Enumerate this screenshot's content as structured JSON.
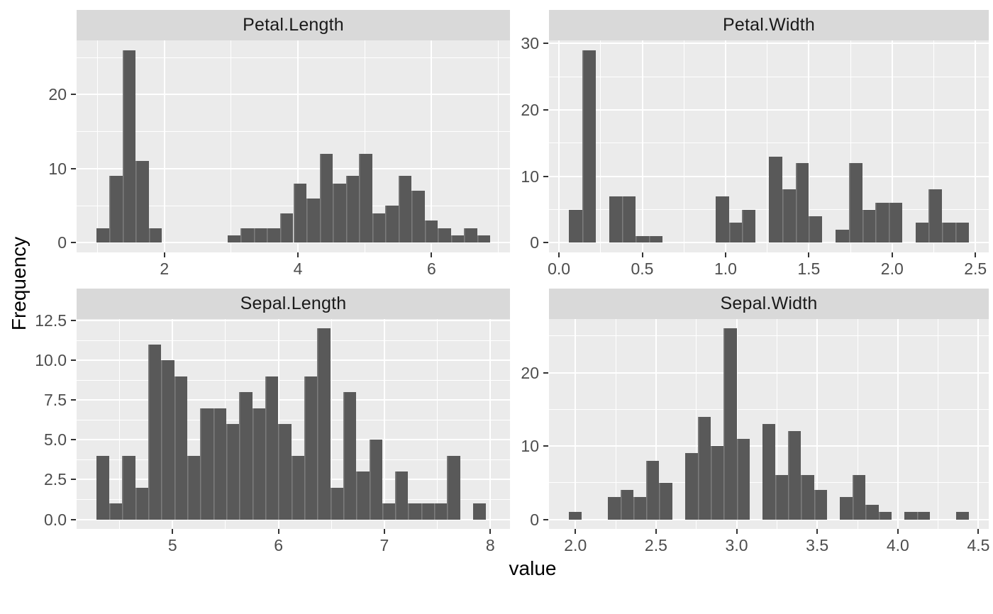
{
  "figure": {
    "xlabel": "value",
    "ylabel": "Frequency"
  },
  "colors": {
    "page_bg": "#FFFFFF",
    "panel_bg": "#EBEBEB",
    "strip_bg": "#D9D9D9",
    "strip_text": "#1A1A1A",
    "bar_fill": "#595959",
    "bar_seam": "rgba(255,255,255,0.22)",
    "gridline": "#FFFFFF",
    "axis_text": "#4D4D4D",
    "tick_mark": "#333333",
    "axis_title": "#000000"
  },
  "chart_data": [
    {
      "type": "bar",
      "subtype": "histogram",
      "title": "Petal.Length",
      "bin_start": 0.98,
      "bin_width": 0.196667,
      "counts": [
        2,
        9,
        26,
        11,
        2,
        0,
        0,
        0,
        0,
        0,
        1,
        2,
        2,
        2,
        4,
        8,
        6,
        12,
        8,
        9,
        12,
        4,
        5,
        9,
        7,
        3,
        2,
        1,
        2,
        1
      ],
      "xlim": [
        0.685,
        7.175
      ],
      "ylim": [
        -1.3,
        27.3
      ],
      "x_ticks": [
        {
          "v": 2,
          "label": "2"
        },
        {
          "v": 4,
          "label": "4"
        },
        {
          "v": 6,
          "label": "6"
        }
      ],
      "x_minor": [
        1,
        3,
        5,
        7
      ],
      "y_ticks": [
        {
          "v": 0,
          "label": "0"
        },
        {
          "v": 10,
          "label": "10"
        },
        {
          "v": 20,
          "label": "20"
        }
      ],
      "y_minor": [
        5,
        15,
        25
      ]
    },
    {
      "type": "bar",
      "subtype": "histogram",
      "title": "Petal.Width",
      "bin_start": 0.06,
      "bin_width": 0.08,
      "counts": [
        5,
        29,
        0,
        7,
        7,
        1,
        1,
        0,
        0,
        0,
        0,
        7,
        3,
        5,
        0,
        13,
        8,
        12,
        4,
        0,
        2,
        12,
        5,
        6,
        6,
        0,
        3,
        8,
        3,
        3
      ],
      "xlim": [
        -0.06,
        2.58
      ],
      "ylim": [
        -1.45,
        30.45
      ],
      "x_ticks": [
        {
          "v": 0,
          "label": "0.0"
        },
        {
          "v": 0.5,
          "label": "0.5"
        },
        {
          "v": 1,
          "label": "1.0"
        },
        {
          "v": 1.5,
          "label": "1.5"
        },
        {
          "v": 2,
          "label": "2.0"
        },
        {
          "v": 2.5,
          "label": "2.5"
        }
      ],
      "x_minor": [
        0.25,
        0.75,
        1.25,
        1.75,
        2.25
      ],
      "y_ticks": [
        {
          "v": 0,
          "label": "0"
        },
        {
          "v": 10,
          "label": "10"
        },
        {
          "v": 20,
          "label": "20"
        },
        {
          "v": 30,
          "label": "30"
        }
      ],
      "y_minor": [
        5,
        15,
        25
      ]
    },
    {
      "type": "bar",
      "subtype": "histogram",
      "title": "Sepal.Length",
      "bin_start": 4.28,
      "bin_width": 0.1227,
      "counts": [
        4,
        1,
        4,
        2,
        11,
        10,
        9,
        4,
        7,
        7,
        6,
        8,
        7,
        9,
        6,
        4,
        9,
        12,
        2,
        8,
        3,
        5,
        1,
        3,
        1,
        1,
        1,
        4,
        0,
        1
      ],
      "xlim": [
        4.094,
        8.186
      ],
      "ylim": [
        -0.6,
        12.6
      ],
      "x_ticks": [
        {
          "v": 5,
          "label": "5"
        },
        {
          "v": 6,
          "label": "6"
        },
        {
          "v": 7,
          "label": "7"
        },
        {
          "v": 8,
          "label": "8"
        }
      ],
      "x_minor": [
        4.5,
        5.5,
        6.5,
        7.5
      ],
      "y_ticks": [
        {
          "v": 0,
          "label": "0.0"
        },
        {
          "v": 2.5,
          "label": "2.5"
        },
        {
          "v": 5,
          "label": "5.0"
        },
        {
          "v": 7.5,
          "label": "7.5"
        },
        {
          "v": 10,
          "label": "10.0"
        },
        {
          "v": 12.5,
          "label": "12.5"
        }
      ],
      "y_minor": [
        1.25,
        3.75,
        6.25,
        8.75,
        11.25
      ]
    },
    {
      "type": "bar",
      "subtype": "histogram",
      "title": "Sepal.Width",
      "bin_start": 1.96,
      "bin_width": 0.08,
      "counts": [
        1,
        0,
        0,
        3,
        4,
        3,
        8,
        5,
        0,
        9,
        14,
        10,
        26,
        11,
        0,
        13,
        6,
        12,
        6,
        4,
        0,
        3,
        6,
        2,
        1,
        0,
        1,
        1,
        0,
        0,
        1
      ],
      "xlim": [
        1.836,
        4.564
      ],
      "ylim": [
        -1.3,
        27.3
      ],
      "x_ticks": [
        {
          "v": 2,
          "label": "2.0"
        },
        {
          "v": 2.5,
          "label": "2.5"
        },
        {
          "v": 3,
          "label": "3.0"
        },
        {
          "v": 3.5,
          "label": "3.5"
        },
        {
          "v": 4,
          "label": "4.0"
        },
        {
          "v": 4.5,
          "label": "4.5"
        }
      ],
      "x_minor": [
        2.25,
        2.75,
        3.25,
        3.75,
        4.25
      ],
      "y_ticks": [
        {
          "v": 0,
          "label": "0"
        },
        {
          "v": 10,
          "label": "10"
        },
        {
          "v": 20,
          "label": "20"
        }
      ],
      "y_minor": [
        5,
        15,
        25
      ]
    }
  ]
}
